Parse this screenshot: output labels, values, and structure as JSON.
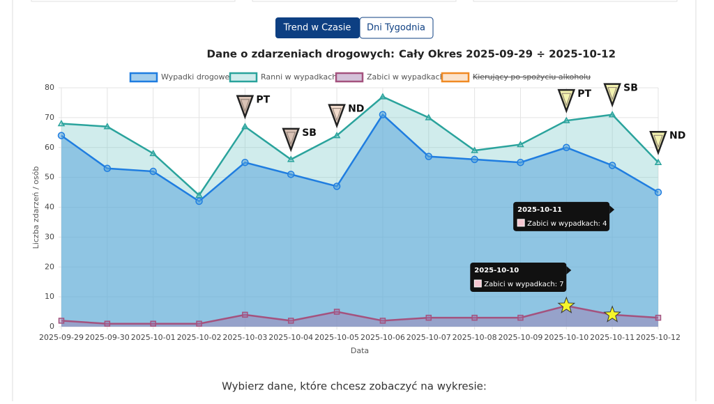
{
  "tabs": [
    "Trend w Czasie",
    "Dni Tygodnia"
  ],
  "chart_data": {
    "type": "line",
    "title": "Dane o zdarzeniach drogowych:",
    "subtitle": "Cały Okres 2025-09-29 ÷ 2025-10-12",
    "xlabel": "Data",
    "ylabel": "Liczba zdarzeń / osób",
    "categories": [
      "2025-09-29",
      "2025-09-30",
      "2025-10-01",
      "2025-10-02",
      "2025-10-03",
      "2025-10-04",
      "2025-10-05",
      "2025-10-06",
      "2025-10-07",
      "2025-10-08",
      "2025-10-09",
      "2025-10-10",
      "2025-10-11",
      "2025-10-12"
    ],
    "series": [
      {
        "name": "Wypadki drogowe",
        "color": "#1f7de0",
        "fill": "rgba(90,165,220,0.55)",
        "point_style": "circle",
        "values": [
          64,
          53,
          52,
          42,
          55,
          51,
          47,
          71,
          57,
          56,
          55,
          60,
          54,
          45
        ]
      },
      {
        "name": "Ranni w wypadkach",
        "color": "#2aa39c",
        "fill": "rgba(120,200,200,0.35)",
        "point_style": "triangle",
        "values": [
          68,
          67,
          58,
          44,
          67,
          56,
          64,
          77,
          70,
          59,
          61,
          69,
          71,
          55
        ]
      },
      {
        "name": "Zabici w wypadkach",
        "color": "#a4527e",
        "fill": "rgba(160,120,170,0.45)",
        "point_style": "square",
        "values": [
          2,
          1,
          1,
          1,
          4,
          2,
          5,
          2,
          3,
          3,
          3,
          7,
          4,
          3
        ]
      },
      {
        "name": "Kierujący po spożyciu alkoholu",
        "color": "#f08a24",
        "hidden": true
      }
    ],
    "ylim": [
      0,
      80
    ],
    "yticks": [
      0,
      10,
      20,
      30,
      40,
      50,
      60,
      70,
      80
    ],
    "grid": true,
    "annotations": [
      {
        "x": "2025-10-03",
        "label": "PT",
        "color": "#d9c2b5"
      },
      {
        "x": "2025-10-04",
        "label": "SB",
        "color": "#d9c2b5"
      },
      {
        "x": "2025-10-05",
        "label": "ND",
        "color": "#f2dccd"
      },
      {
        "x": "2025-10-10",
        "label": "PT",
        "color": "#f3f3b0"
      },
      {
        "x": "2025-10-11",
        "label": "SB",
        "color": "#f3f3b0"
      },
      {
        "x": "2025-10-12",
        "label": "ND",
        "color": "#f3f3b0"
      }
    ],
    "tooltips": [
      {
        "x": "2025-10-11",
        "title": "2025-10-11",
        "text": "Zabici w wypadkach: 4"
      },
      {
        "x": "2025-10-10",
        "title": "2025-10-10",
        "text": "Zabici w wypadkach: 7"
      }
    ]
  },
  "prompt": "Wybierz dane, które chcesz zobaczyć na wykresie:"
}
